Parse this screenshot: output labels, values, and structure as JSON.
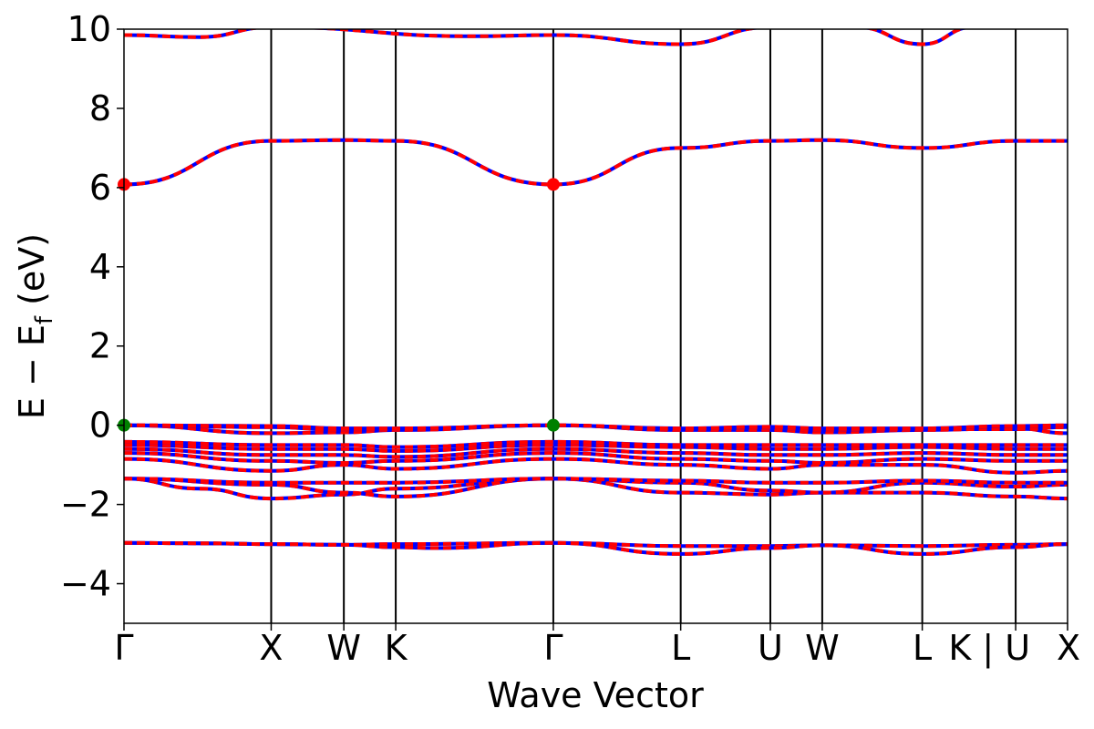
{
  "chart_data": {
    "type": "line",
    "xlabel": "Wave Vector",
    "ylabel_parts": {
      "main": "E − E",
      "sub": "f",
      "unit": " (eV)"
    },
    "ylim": [
      -5,
      10
    ],
    "yticks": [
      -4,
      -2,
      0,
      2,
      4,
      6,
      8,
      10
    ],
    "ytick_labels": [
      "−4",
      "−2",
      "0",
      "2",
      "4",
      "6",
      "8",
      "10"
    ],
    "xlim": [
      0,
      1
    ],
    "kpath": [
      {
        "label": "Γ",
        "x": 0.0
      },
      {
        "label": "X",
        "x": 0.156
      },
      {
        "label": "W",
        "x": 0.233
      },
      {
        "label": "K",
        "x": 0.288
      },
      {
        "label": "Γ",
        "x": 0.455
      },
      {
        "label": "L",
        "x": 0.59
      },
      {
        "label": "U",
        "x": 0.685
      },
      {
        "label": "W",
        "x": 0.74
      },
      {
        "label": "L",
        "x": 0.846
      },
      {
        "label": "K | U",
        "x": 0.945
      },
      {
        "label": "X",
        "x": 1.0
      }
    ],
    "colors": {
      "spin_up": "#ff0000",
      "spin_down": "#0000ff",
      "vbm": "#008000",
      "cbm": "#ff0000"
    },
    "bands": [
      {
        "x": [
          0,
          0.08,
          0.156,
          0.233,
          0.288,
          0.455,
          0.59,
          0.685,
          0.74,
          0.846,
          0.945,
          1.0
        ],
        "y": [
          -2.97,
          -2.98,
          -3.0,
          -3.02,
          -3.0,
          -2.97,
          -3.05,
          -3.05,
          -3.03,
          -3.05,
          -3.02,
          -3.0
        ]
      },
      {
        "x": [
          0,
          0.08,
          0.156,
          0.233,
          0.288,
          0.33,
          0.455,
          0.59,
          0.685,
          0.74,
          0.846,
          0.945,
          1.0
        ],
        "y": [
          -2.97,
          -2.98,
          -3.0,
          -3.02,
          -3.08,
          -3.1,
          -2.97,
          -3.25,
          -3.1,
          -3.03,
          -3.25,
          -3.08,
          -3.0
        ]
      },
      {
        "x": [
          0,
          0.08,
          0.156,
          0.233,
          0.288,
          0.455,
          0.59,
          0.685,
          0.74,
          0.846,
          0.945,
          1.0
        ],
        "y": [
          -1.35,
          -1.6,
          -1.85,
          -1.75,
          -1.6,
          -1.35,
          -1.7,
          -1.75,
          -1.7,
          -1.7,
          -1.8,
          -1.85
        ]
      },
      {
        "x": [
          0,
          0.156,
          0.233,
          0.288,
          0.455,
          0.59,
          0.685,
          0.74,
          0.846,
          0.945,
          1.0
        ],
        "y": [
          -1.35,
          -1.5,
          -1.7,
          -1.8,
          -1.35,
          -1.45,
          -1.65,
          -1.7,
          -1.45,
          -1.55,
          -1.5
        ]
      },
      {
        "x": [
          0,
          0.156,
          0.233,
          0.288,
          0.455,
          0.59,
          0.685,
          0.74,
          0.846,
          0.945,
          1.0
        ],
        "y": [
          -1.35,
          -1.45,
          -1.45,
          -1.45,
          -1.35,
          -1.4,
          -1.45,
          -1.45,
          -1.4,
          -1.45,
          -1.45
        ]
      },
      {
        "x": [
          0,
          0.156,
          0.233,
          0.288,
          0.455,
          0.59,
          0.685,
          0.74,
          0.846,
          0.945,
          1.0
        ],
        "y": [
          -0.85,
          -1.15,
          -1.0,
          -1.1,
          -0.85,
          -1.0,
          -1.1,
          -1.0,
          -1.0,
          -1.2,
          -1.15
        ]
      },
      {
        "x": [
          0,
          0.156,
          0.233,
          0.288,
          0.455,
          0.59,
          0.685,
          0.74,
          0.846,
          0.945,
          1.0
        ],
        "y": [
          -0.7,
          -0.9,
          -0.95,
          -0.9,
          -0.7,
          -0.85,
          -0.9,
          -0.95,
          -0.85,
          -0.9,
          -0.9
        ]
      },
      {
        "x": [
          0,
          0.156,
          0.233,
          0.288,
          0.455,
          0.59,
          0.685,
          0.74,
          0.846,
          0.945,
          1.0
        ],
        "y": [
          -0.6,
          -0.75,
          -0.75,
          -0.8,
          -0.6,
          -0.7,
          -0.75,
          -0.75,
          -0.7,
          -0.75,
          -0.75
        ]
      },
      {
        "x": [
          0,
          0.156,
          0.233,
          0.288,
          0.455,
          0.59,
          0.685,
          0.74,
          0.846,
          0.945,
          1.0
        ],
        "y": [
          -0.5,
          -0.6,
          -0.6,
          -0.65,
          -0.5,
          -0.55,
          -0.6,
          -0.6,
          -0.55,
          -0.6,
          -0.6
        ]
      },
      {
        "x": [
          0,
          0.156,
          0.233,
          0.288,
          0.455,
          0.59,
          0.685,
          0.74,
          0.846,
          0.945,
          1.0
        ],
        "y": [
          -0.42,
          -0.5,
          -0.5,
          -0.55,
          -0.42,
          -0.5,
          -0.5,
          -0.5,
          -0.5,
          -0.5,
          -0.5
        ]
      },
      {
        "x": [
          0,
          0.156,
          0.233,
          0.288,
          0.455,
          0.59,
          0.685,
          0.74,
          0.846,
          0.945,
          1.0
        ],
        "y": [
          0.0,
          -0.2,
          -0.18,
          -0.12,
          0.0,
          -0.12,
          -0.12,
          -0.18,
          -0.12,
          -0.08,
          -0.2
        ]
      },
      {
        "x": [
          0,
          0.156,
          0.233,
          0.288,
          0.455,
          0.59,
          0.685,
          0.74,
          0.846,
          0.945,
          1.0
        ],
        "y": [
          0.0,
          -0.05,
          -0.12,
          -0.1,
          0.0,
          -0.1,
          -0.06,
          -0.12,
          -0.1,
          -0.1,
          -0.05
        ]
      },
      {
        "x": [
          0,
          0.156,
          0.233,
          0.288,
          0.455,
          0.59,
          0.685,
          0.74,
          0.846,
          0.945,
          1.0
        ],
        "y": [
          0.0,
          -0.02,
          -0.08,
          -0.08,
          0.0,
          -0.08,
          -0.04,
          -0.08,
          -0.08,
          -0.02,
          0.0
        ]
      },
      {
        "x": [
          0,
          0.156,
          0.233,
          0.288,
          0.455,
          0.59,
          0.685,
          0.74,
          0.846,
          0.945,
          1.0
        ],
        "y": [
          6.08,
          7.18,
          7.2,
          7.18,
          6.08,
          7.0,
          7.18,
          7.2,
          7.0,
          7.18,
          7.18
        ]
      },
      {
        "x": [
          0,
          0.08,
          0.156,
          0.37,
          0.455,
          0.59,
          0.685
        ],
        "y": [
          9.85,
          9.8,
          10.05,
          9.82,
          9.85,
          9.62,
          10.05
        ]
      },
      {
        "x": [
          0.776,
          0.846,
          0.9
        ],
        "y": [
          10.05,
          9.62,
          10.05
        ]
      }
    ],
    "vbm_points": [
      {
        "x": 0.0,
        "y": 0.0
      },
      {
        "x": 0.455,
        "y": 0.0
      }
    ],
    "cbm_points": [
      {
        "x": 0.0,
        "y": 6.08
      },
      {
        "x": 0.455,
        "y": 6.08
      }
    ]
  }
}
